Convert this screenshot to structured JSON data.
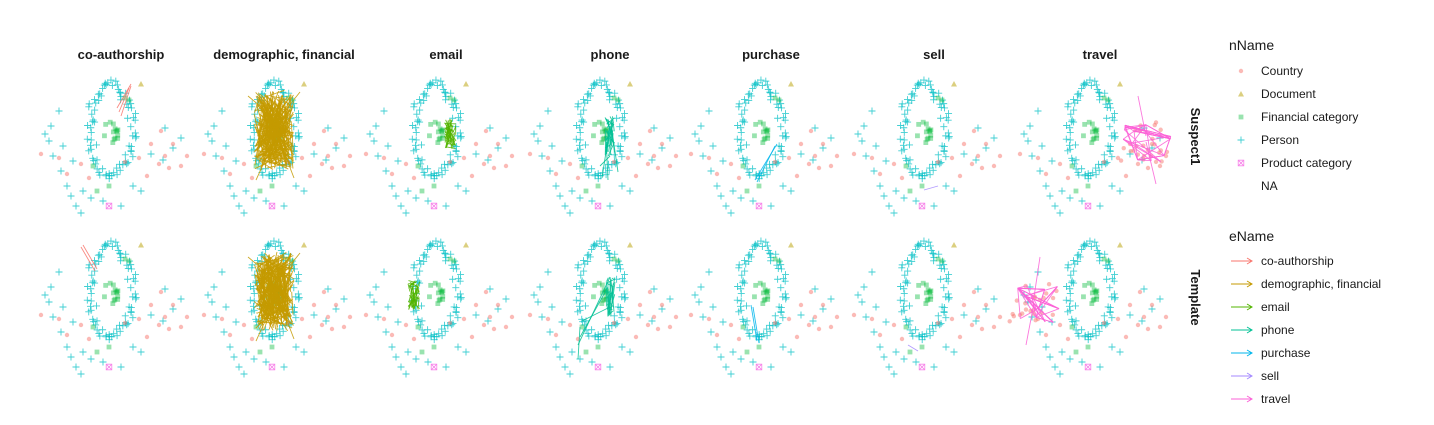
{
  "chart_data": {
    "type": "scatter",
    "description_kind": "faceted network graph",
    "facet_columns": [
      "co-authorship",
      "demographic, financial",
      "email",
      "phone",
      "purchase",
      "sell",
      "travel"
    ],
    "facet_rows": [
      "Suspect1",
      "Template"
    ],
    "legends": {
      "nodes": {
        "title": "nName",
        "entries": [
          {
            "label": "Country",
            "color": "#F8766D",
            "shape": "circle"
          },
          {
            "label": "Document",
            "color": "#B79F00",
            "shape": "triangle"
          },
          {
            "label": "Financial category",
            "color": "#00BA38",
            "shape": "square"
          },
          {
            "label": "Person",
            "color": "#00BFC4",
            "shape": "plus"
          },
          {
            "label": "Product category",
            "color": "#F564E3",
            "shape": "boxcross"
          },
          {
            "label": "NA",
            "color": "#ffffff",
            "shape": "none"
          }
        ]
      },
      "edges": {
        "title": "eName",
        "entries": [
          {
            "label": "co-authorship",
            "color": "#F8766D"
          },
          {
            "label": "demographic, financial",
            "color": "#C49A00"
          },
          {
            "label": "email",
            "color": "#53B400"
          },
          {
            "label": "phone",
            "color": "#00C094"
          },
          {
            "label": "purchase",
            "color": "#00B6EB"
          },
          {
            "label": "sell",
            "color": "#A58AFF"
          },
          {
            "label": "travel",
            "color": "#FB61D7"
          }
        ]
      }
    },
    "axes": {
      "x": "hidden",
      "y": "hidden",
      "grid": false
    },
    "legend_position": "right"
  }
}
